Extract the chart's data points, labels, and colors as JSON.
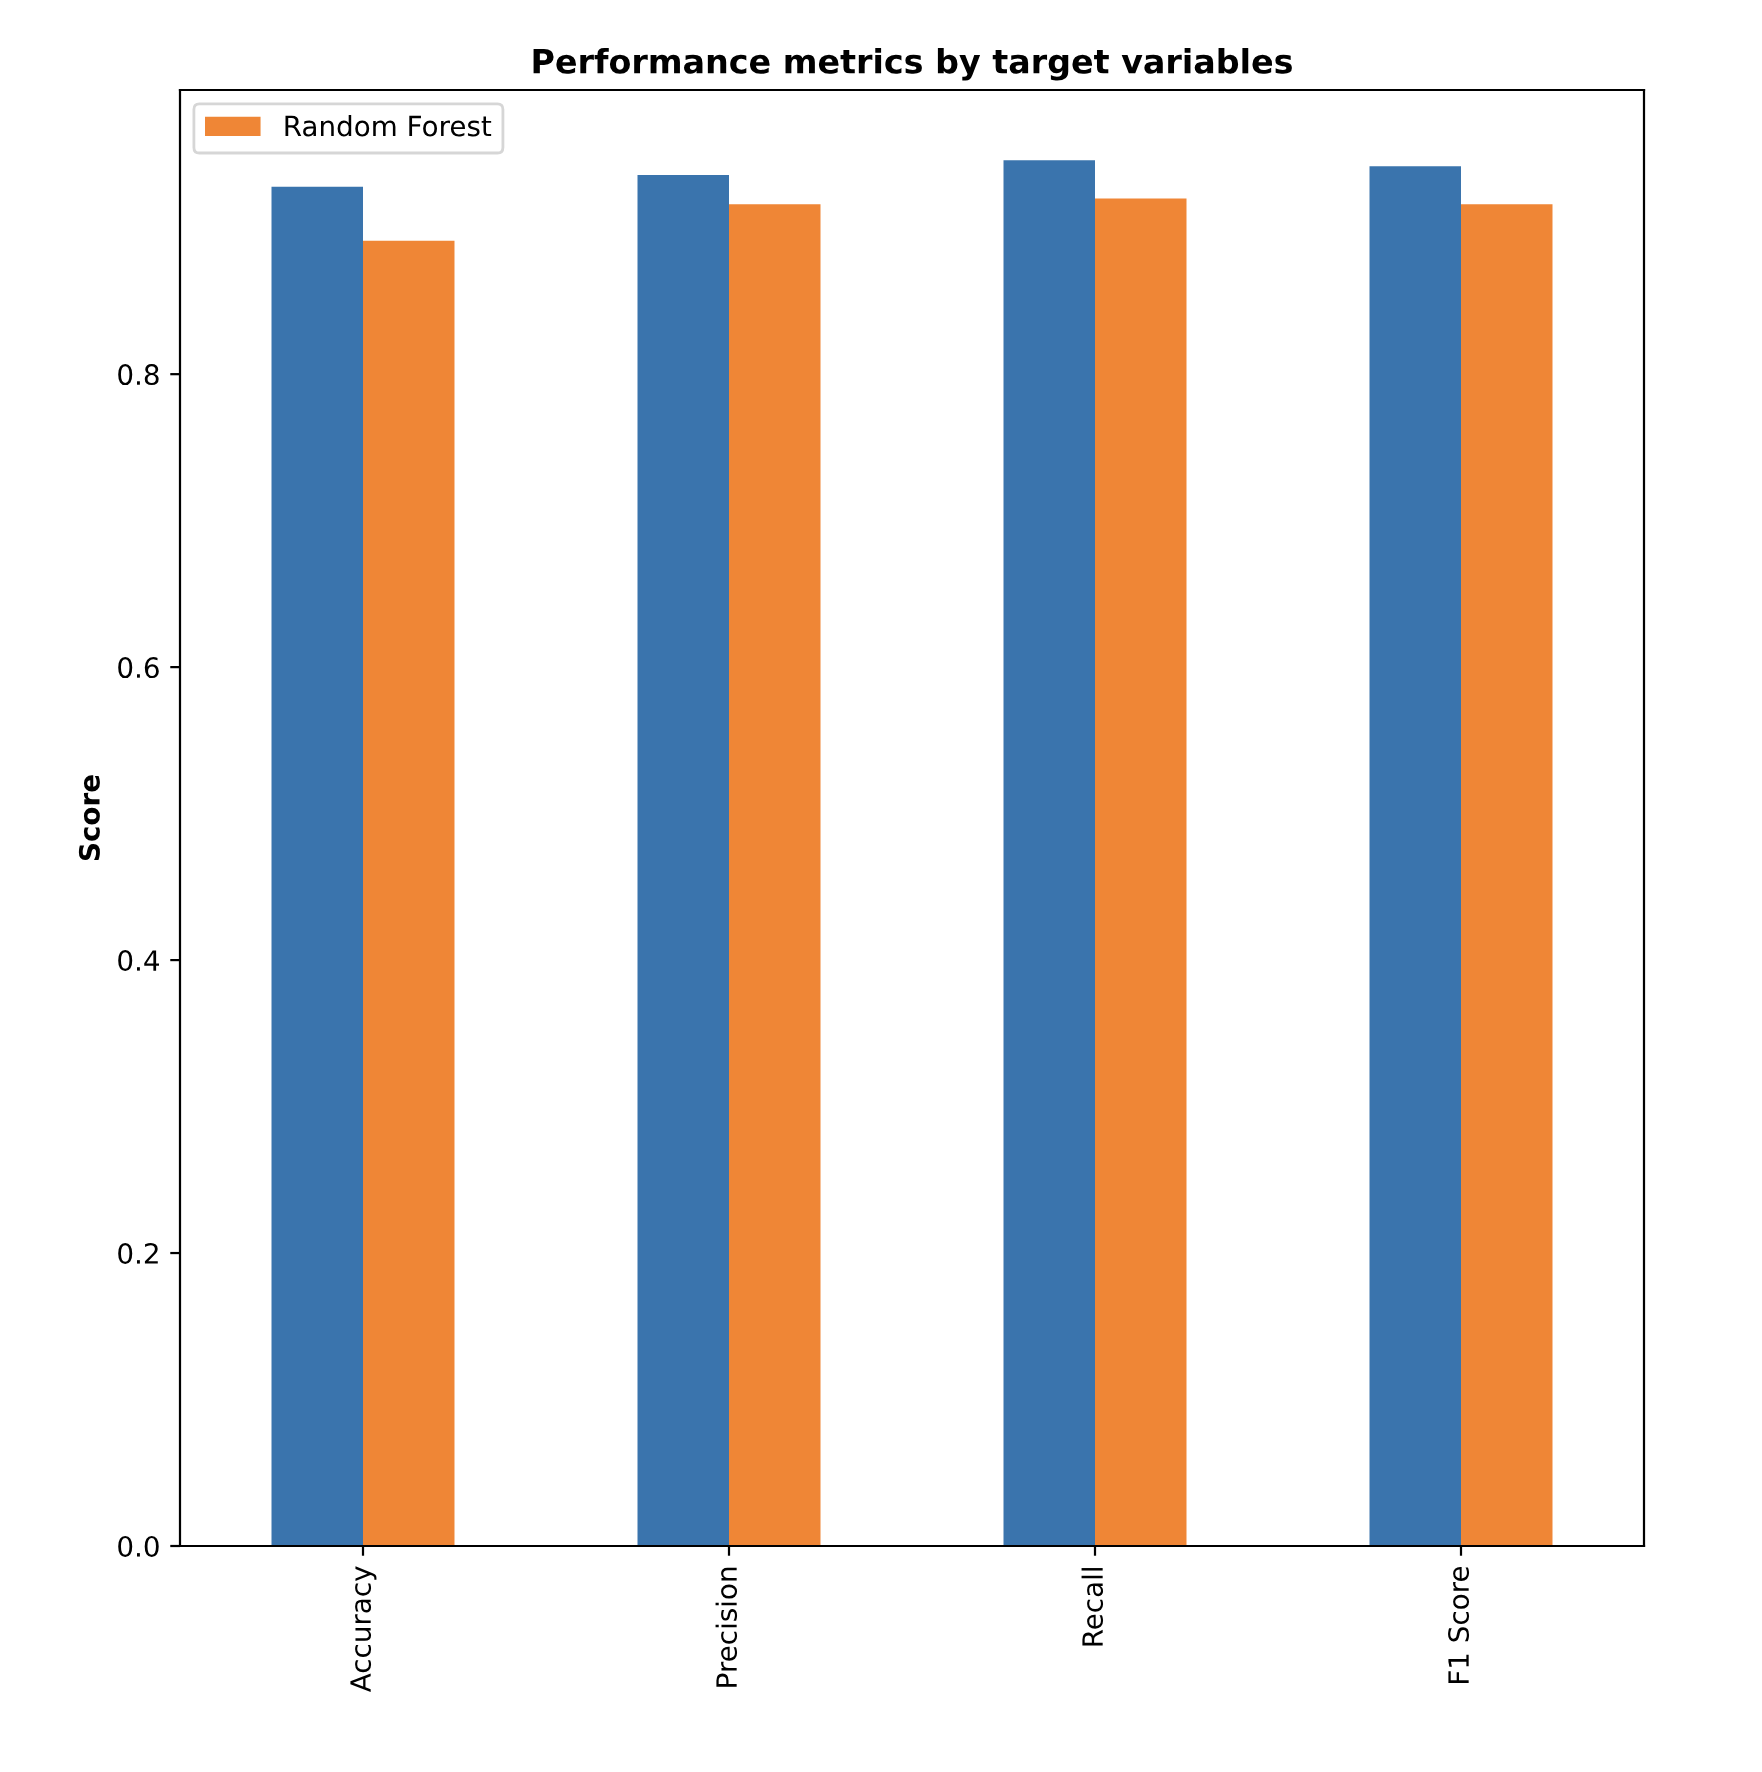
{
  "chart_data": {
    "type": "bar",
    "title": "Performance metrics by target variables",
    "ylabel": "Score",
    "categories": [
      "Accuracy",
      "Precision",
      "Recall",
      "F1 Score"
    ],
    "series": [
      {
        "color": "#3a74ad",
        "values": [
          0.928,
          0.936,
          0.946,
          0.942
        ]
      },
      {
        "name": "Random Forest",
        "color": "#ef8636",
        "values": [
          0.891,
          0.916,
          0.92,
          0.916
        ]
      }
    ],
    "ylim": [
      0,
      0.994
    ],
    "yticks": [
      {
        "value": 0,
        "label": "0.0"
      },
      0.2,
      0.4,
      0.6,
      0.8
    ],
    "grid": false,
    "legend": "top left"
  }
}
